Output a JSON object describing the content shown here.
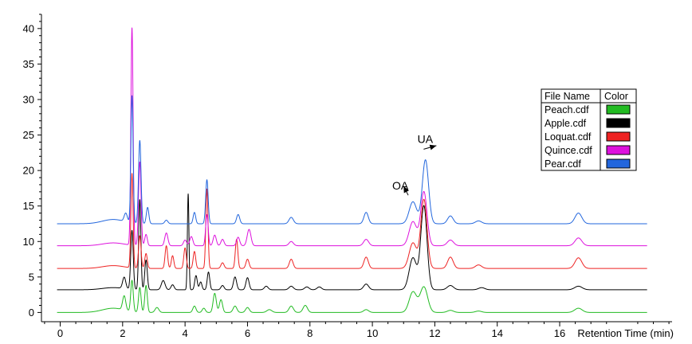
{
  "chart_data": {
    "type": "line",
    "title": "",
    "xlabel": "Retention Time (min)",
    "ylabel": "",
    "xlim": [
      -0.6,
      19.6
    ],
    "ylim": [
      -1.3,
      42
    ],
    "x_ticks": [
      0,
      2,
      4,
      6,
      8,
      10,
      12,
      14,
      16
    ],
    "y_ticks": [
      0,
      5,
      10,
      15,
      20,
      25,
      30,
      35,
      40
    ],
    "grid": false,
    "legend": {
      "placement": "right",
      "header_name": "File Name",
      "header_color": "Color"
    },
    "annotations": [
      {
        "text": "OA",
        "x": 11.2,
        "y": 17.3
      },
      {
        "text": "UA",
        "x": 12.0,
        "y": 23.9
      }
    ],
    "series": [
      {
        "name": "Peach.cdf",
        "color": "#22bb22",
        "baseline": 0.0,
        "peaks": [
          [
            1.7,
            0.6,
            0.35
          ],
          [
            2.05,
            2.0,
            0.05
          ],
          [
            2.3,
            4.4,
            0.04
          ],
          [
            2.55,
            3.5,
            0.04
          ],
          [
            2.75,
            3.8,
            0.04
          ],
          [
            3.1,
            0.7,
            0.06
          ],
          [
            4.3,
            0.9,
            0.05
          ],
          [
            4.6,
            0.6,
            0.05
          ],
          [
            4.95,
            2.7,
            0.05
          ],
          [
            5.15,
            1.8,
            0.05
          ],
          [
            5.6,
            0.9,
            0.06
          ],
          [
            6.0,
            0.7,
            0.06
          ],
          [
            6.7,
            0.4,
            0.08
          ],
          [
            7.4,
            0.9,
            0.07
          ],
          [
            7.85,
            1.0,
            0.07
          ],
          [
            9.8,
            0.4,
            0.08
          ],
          [
            11.3,
            2.9,
            0.12
          ],
          [
            11.65,
            3.6,
            0.12
          ],
          [
            12.5,
            0.3,
            0.1
          ],
          [
            13.4,
            0.2,
            0.1
          ],
          [
            16.6,
            0.6,
            0.12
          ]
        ]
      },
      {
        "name": "Apple.cdf",
        "color": "#000000",
        "baseline": 3.2,
        "peaks": [
          [
            1.7,
            0.3,
            0.35
          ],
          [
            2.05,
            1.6,
            0.05
          ],
          [
            2.3,
            8.3,
            0.04
          ],
          [
            2.55,
            12.7,
            0.035
          ],
          [
            2.75,
            4.2,
            0.04
          ],
          [
            3.3,
            1.3,
            0.06
          ],
          [
            3.6,
            0.7,
            0.05
          ],
          [
            4.1,
            13.5,
            0.025
          ],
          [
            4.35,
            2.0,
            0.04
          ],
          [
            4.5,
            1.1,
            0.04
          ],
          [
            4.75,
            2.5,
            0.04
          ],
          [
            5.2,
            0.6,
            0.05
          ],
          [
            5.6,
            1.8,
            0.05
          ],
          [
            6.0,
            1.7,
            0.05
          ],
          [
            6.6,
            0.5,
            0.06
          ],
          [
            7.4,
            0.5,
            0.07
          ],
          [
            7.9,
            0.4,
            0.07
          ],
          [
            8.3,
            0.4,
            0.07
          ],
          [
            9.8,
            0.8,
            0.08
          ],
          [
            11.3,
            4.5,
            0.12
          ],
          [
            11.65,
            11.8,
            0.1
          ],
          [
            12.5,
            0.6,
            0.1
          ],
          [
            13.5,
            0.3,
            0.1
          ],
          [
            16.6,
            0.5,
            0.12
          ]
        ]
      },
      {
        "name": "Loquat.cdf",
        "color": "#ee2222",
        "baseline": 6.2,
        "peaks": [
          [
            1.7,
            0.4,
            0.35
          ],
          [
            2.3,
            13.3,
            0.035
          ],
          [
            2.55,
            4.6,
            0.04
          ],
          [
            2.75,
            2.1,
            0.04
          ],
          [
            3.4,
            3.2,
            0.04
          ],
          [
            3.6,
            1.8,
            0.04
          ],
          [
            4.0,
            2.9,
            0.04
          ],
          [
            4.3,
            2.4,
            0.04
          ],
          [
            4.7,
            11.2,
            0.035
          ],
          [
            5.2,
            0.8,
            0.05
          ],
          [
            5.65,
            4.1,
            0.04
          ],
          [
            6.0,
            1.3,
            0.05
          ],
          [
            7.4,
            1.3,
            0.06
          ],
          [
            9.8,
            1.6,
            0.07
          ],
          [
            11.3,
            3.6,
            0.12
          ],
          [
            11.65,
            9.7,
            0.1
          ],
          [
            12.5,
            1.6,
            0.09
          ],
          [
            13.4,
            0.5,
            0.1
          ],
          [
            16.6,
            1.5,
            0.11
          ]
        ]
      },
      {
        "name": "Quince.cdf",
        "color": "#dd11dd",
        "baseline": 9.4,
        "peaks": [
          [
            1.7,
            0.4,
            0.35
          ],
          [
            2.3,
            30.6,
            0.035
          ],
          [
            2.55,
            11.8,
            0.04
          ],
          [
            2.75,
            1.6,
            0.04
          ],
          [
            3.4,
            1.8,
            0.05
          ],
          [
            4.0,
            0.8,
            0.05
          ],
          [
            4.2,
            1.3,
            0.05
          ],
          [
            4.7,
            4.4,
            0.04
          ],
          [
            4.95,
            1.5,
            0.05
          ],
          [
            5.2,
            0.9,
            0.05
          ],
          [
            5.7,
            1.2,
            0.05
          ],
          [
            6.05,
            2.3,
            0.06
          ],
          [
            7.4,
            0.6,
            0.07
          ],
          [
            9.8,
            0.9,
            0.08
          ],
          [
            11.3,
            3.4,
            0.12
          ],
          [
            11.65,
            7.6,
            0.1
          ],
          [
            12.5,
            0.8,
            0.1
          ],
          [
            16.6,
            1.1,
            0.11
          ]
        ]
      },
      {
        "name": "Pear.cdf",
        "color": "#2266dd",
        "baseline": 12.5,
        "peaks": [
          [
            1.7,
            0.6,
            0.35
          ],
          [
            2.1,
            1.2,
            0.05
          ],
          [
            2.3,
            17.9,
            0.035
          ],
          [
            2.55,
            11.7,
            0.04
          ],
          [
            2.8,
            2.3,
            0.04
          ],
          [
            3.4,
            0.5,
            0.05
          ],
          [
            4.3,
            1.6,
            0.04
          ],
          [
            4.7,
            6.2,
            0.04
          ],
          [
            5.7,
            1.3,
            0.05
          ],
          [
            7.4,
            0.9,
            0.07
          ],
          [
            9.8,
            1.6,
            0.07
          ],
          [
            11.3,
            3.1,
            0.12
          ],
          [
            11.7,
            9.0,
            0.1
          ],
          [
            12.5,
            1.1,
            0.09
          ],
          [
            13.4,
            0.4,
            0.1
          ],
          [
            16.6,
            1.5,
            0.11
          ]
        ]
      }
    ]
  }
}
